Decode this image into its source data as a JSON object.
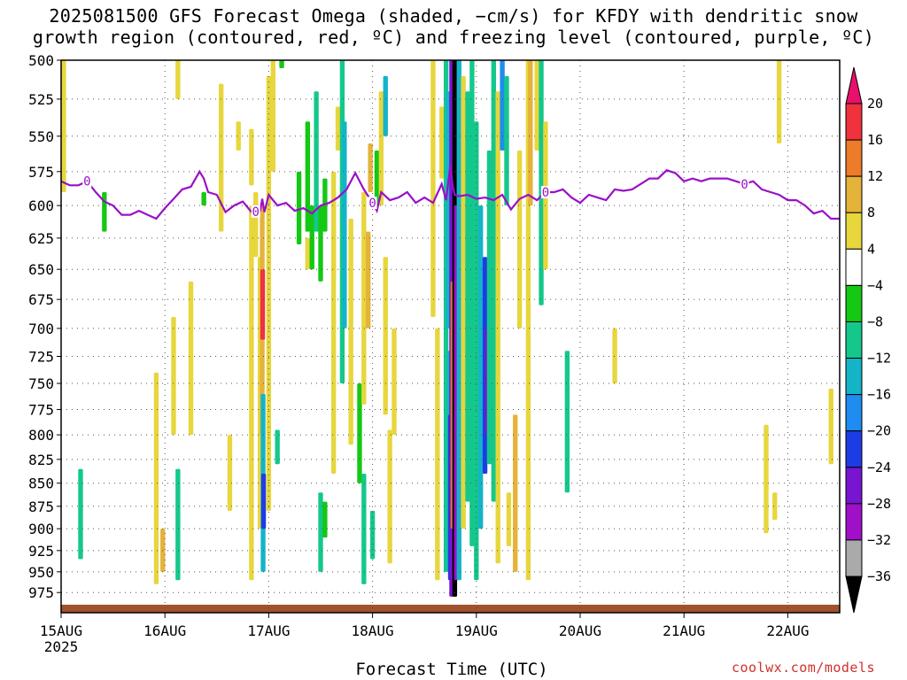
{
  "title_lines": [
    "2025081500 GFS Forecast Omega (shaded, −cm/s) for KFDY with dendritic snow",
    "growth region (contoured, red, ºC) and freezing level (contoured, purple, ºC)"
  ],
  "credit": "coolwx.com/models",
  "chart_data": {
    "type": "heatmap",
    "title": "2025081500 GFS Forecast Omega (shaded, −cm/s) for KFDY with dendritic snow growth region (contoured, red, ºC) and freezing level (contoured, purple, ºC)",
    "xlabel": "Forecast Time (UTC)",
    "ylabel": "",
    "x_ticks": [
      "15AUG",
      "16AUG",
      "17AUG",
      "18AUG",
      "19AUG",
      "20AUG",
      "21AUG",
      "22AUG"
    ],
    "x_tick_sublabel": "2025",
    "xlim_hours": [
      0,
      180
    ],
    "y_ticks": [
      500,
      525,
      550,
      575,
      600,
      625,
      650,
      675,
      700,
      725,
      750,
      775,
      800,
      825,
      850,
      875,
      900,
      925,
      950,
      975
    ],
    "ylim": [
      500,
      1000
    ],
    "y_scale": "log-pressure",
    "grid": true,
    "colorbar": {
      "labels": [
        "20",
        "16",
        "12",
        "8",
        "4",
        "−4",
        "−8",
        "−12",
        "−16",
        "−20",
        "−24",
        "−28",
        "−32",
        "−36"
      ],
      "colors": [
        "#e8106c",
        "#f0323c",
        "#ec7b2a",
        "#e5b23a",
        "#e7d63c",
        "#ffffff",
        "#14c814",
        "#14c88c",
        "#14b4c8",
        "#1e8cf0",
        "#1e3ce6",
        "#7814d2",
        "#a010c8",
        "#aaaaaa",
        "#000000"
      ]
    },
    "omega_cells": [
      {
        "t": 0.6,
        "p0": 500,
        "p1": 590,
        "v": 6
      },
      {
        "t": 4.5,
        "p0": 835,
        "p1": 935,
        "v": -8
      },
      {
        "t": 10,
        "p0": 590,
        "p1": 620,
        "v": -6
      },
      {
        "t": 22,
        "p0": 740,
        "p1": 965,
        "v": 5
      },
      {
        "t": 23.5,
        "p0": 900,
        "p1": 950,
        "v": 10
      },
      {
        "t": 26,
        "p0": 690,
        "p1": 800,
        "v": 5
      },
      {
        "t": 27,
        "p0": 500,
        "p1": 525,
        "v": 5
      },
      {
        "t": 27,
        "p0": 835,
        "p1": 960,
        "v": -8
      },
      {
        "t": 30,
        "p0": 660,
        "p1": 800,
        "v": 5
      },
      {
        "t": 33,
        "p0": 590,
        "p1": 600,
        "v": -6
      },
      {
        "t": 37,
        "p0": 515,
        "p1": 620,
        "v": 5
      },
      {
        "t": 39,
        "p0": 800,
        "p1": 880,
        "v": 5
      },
      {
        "t": 41,
        "p0": 540,
        "p1": 560,
        "v": 5
      },
      {
        "t": 44,
        "p0": 545,
        "p1": 585,
        "v": 5
      },
      {
        "t": 44,
        "p0": 600,
        "p1": 960,
        "v": 5
      },
      {
        "t": 45,
        "p0": 590,
        "p1": 640,
        "v": 5
      },
      {
        "t": 46,
        "p0": 640,
        "p1": 900,
        "v": 5
      },
      {
        "t": 46.5,
        "p0": 600,
        "p1": 800,
        "v": 10
      },
      {
        "t": 46.6,
        "p0": 650,
        "p1": 710,
        "v": 18
      },
      {
        "t": 46.7,
        "p0": 760,
        "p1": 950,
        "v": -14
      },
      {
        "t": 46.8,
        "p0": 840,
        "p1": 900,
        "v": -22
      },
      {
        "t": 48,
        "p0": 510,
        "p1": 600,
        "v": 6
      },
      {
        "t": 48,
        "p0": 600,
        "p1": 880,
        "v": 6
      },
      {
        "t": 49,
        "p0": 500,
        "p1": 575,
        "v": 5
      },
      {
        "t": 50,
        "p0": 795,
        "p1": 830,
        "v": -8
      },
      {
        "t": 51,
        "p0": 500,
        "p1": 505,
        "v": -6
      },
      {
        "t": 55,
        "p0": 575,
        "p1": 630,
        "v": -6
      },
      {
        "t": 57,
        "p0": 540,
        "p1": 620,
        "v": -6
      },
      {
        "t": 57,
        "p0": 625,
        "p1": 650,
        "v": 5
      },
      {
        "t": 58,
        "p0": 600,
        "p1": 650,
        "v": -6
      },
      {
        "t": 59,
        "p0": 520,
        "p1": 620,
        "v": -8
      },
      {
        "t": 60,
        "p0": 600,
        "p1": 660,
        "v": -6
      },
      {
        "t": 60,
        "p0": 860,
        "p1": 950,
        "v": -8
      },
      {
        "t": 61,
        "p0": 580,
        "p1": 620,
        "v": -6
      },
      {
        "t": 61,
        "p0": 870,
        "p1": 910,
        "v": -6
      },
      {
        "t": 63,
        "p0": 575,
        "p1": 660,
        "v": 5
      },
      {
        "t": 63,
        "p0": 590,
        "p1": 840,
        "v": 5
      },
      {
        "t": 64,
        "p0": 530,
        "p1": 560,
        "v": 5
      },
      {
        "t": 65,
        "p0": 500,
        "p1": 750,
        "v": -8
      },
      {
        "t": 65.5,
        "p0": 540,
        "p1": 700,
        "v": -12
      },
      {
        "t": 67,
        "p0": 610,
        "p1": 810,
        "v": 5
      },
      {
        "t": 69,
        "p0": 750,
        "p1": 850,
        "v": -6
      },
      {
        "t": 70,
        "p0": 590,
        "p1": 770,
        "v": 5
      },
      {
        "t": 70,
        "p0": 840,
        "p1": 965,
        "v": -8
      },
      {
        "t": 71,
        "p0": 620,
        "p1": 700,
        "v": 10
      },
      {
        "t": 71.5,
        "p0": 555,
        "p1": 590,
        "v": 8
      },
      {
        "t": 72,
        "p0": 880,
        "p1": 935,
        "v": -8
      },
      {
        "t": 73,
        "p0": 560,
        "p1": 600,
        "v": -6
      },
      {
        "t": 74,
        "p0": 520,
        "p1": 600,
        "v": 5
      },
      {
        "t": 75,
        "p0": 510,
        "p1": 550,
        "v": -12
      },
      {
        "t": 75,
        "p0": 640,
        "p1": 780,
        "v": 6
      },
      {
        "t": 76,
        "p0": 795,
        "p1": 940,
        "v": 5
      },
      {
        "t": 77,
        "p0": 700,
        "p1": 800,
        "v": 5
      },
      {
        "t": 86,
        "p0": 500,
        "p1": 690,
        "v": 5
      },
      {
        "t": 87,
        "p0": 700,
        "p1": 960,
        "v": 5
      },
      {
        "t": 88,
        "p0": 530,
        "p1": 580,
        "v": 5
      },
      {
        "t": 89,
        "p0": 500,
        "p1": 950,
        "v": -8
      },
      {
        "t": 89.5,
        "p0": 520,
        "p1": 700,
        "v": -12
      },
      {
        "t": 89.8,
        "p0": 720,
        "p1": 950,
        "v": -14
      },
      {
        "t": 90,
        "p0": 780,
        "p1": 960,
        "v": -20
      },
      {
        "t": 90.3,
        "p0": 500,
        "p1": 980,
        "v": -26
      },
      {
        "t": 90.6,
        "p0": 660,
        "p1": 900,
        "v": 14
      },
      {
        "t": 91,
        "p0": 500,
        "p1": 980,
        "v": -38
      },
      {
        "t": 91.4,
        "p0": 600,
        "p1": 960,
        "v": -30
      },
      {
        "t": 92,
        "p0": 500,
        "p1": 960,
        "v": -14
      },
      {
        "t": 93,
        "p0": 510,
        "p1": 900,
        "v": 6
      },
      {
        "t": 94,
        "p0": 520,
        "p1": 870,
        "v": -8
      },
      {
        "t": 95,
        "p0": 500,
        "p1": 920,
        "v": -8
      },
      {
        "t": 96,
        "p0": 540,
        "p1": 960,
        "v": -10
      },
      {
        "t": 97,
        "p0": 600,
        "p1": 900,
        "v": -14
      },
      {
        "t": 98,
        "p0": 640,
        "p1": 840,
        "v": -20
      },
      {
        "t": 98.5,
        "p0": 700,
        "p1": 800,
        "v": -24
      },
      {
        "t": 99,
        "p0": 560,
        "p1": 830,
        "v": -10
      },
      {
        "t": 100,
        "p0": 500,
        "p1": 870,
        "v": -8
      },
      {
        "t": 101,
        "p0": 520,
        "p1": 600,
        "v": 5
      },
      {
        "t": 101,
        "p0": 580,
        "p1": 940,
        "v": 5
      },
      {
        "t": 102,
        "p0": 500,
        "p1": 560,
        "v": -16
      },
      {
        "t": 103,
        "p0": 510,
        "p1": 600,
        "v": -8
      },
      {
        "t": 103.5,
        "p0": 860,
        "p1": 920,
        "v": 5
      },
      {
        "t": 105,
        "p0": 780,
        "p1": 950,
        "v": 8
      },
      {
        "t": 106,
        "p0": 560,
        "p1": 700,
        "v": 5
      },
      {
        "t": 108,
        "p0": 500,
        "p1": 960,
        "v": 5
      },
      {
        "t": 108.5,
        "p0": 500,
        "p1": 600,
        "v": 10
      },
      {
        "t": 110,
        "p0": 500,
        "p1": 560,
        "v": 5
      },
      {
        "t": 111,
        "p0": 500,
        "p1": 680,
        "v": -8
      },
      {
        "t": 112,
        "p0": 540,
        "p1": 650,
        "v": 5
      },
      {
        "t": 117,
        "p0": 720,
        "p1": 860,
        "v": -8
      },
      {
        "t": 128,
        "p0": 700,
        "p1": 750,
        "v": 5
      },
      {
        "t": 163,
        "p0": 790,
        "p1": 905,
        "v": 5
      },
      {
        "t": 165,
        "p0": 860,
        "p1": 890,
        "v": 5
      },
      {
        "t": 166,
        "p0": 500,
        "p1": 555,
        "v": 5
      },
      {
        "t": 178,
        "p0": 755,
        "p1": 830,
        "v": 5
      }
    ],
    "freezing_level": {
      "label": "0",
      "t": [
        0,
        2,
        4,
        6,
        8,
        10,
        12,
        14,
        16,
        18,
        20,
        22,
        24,
        26,
        28,
        30,
        32,
        33,
        34,
        36,
        38,
        40,
        42,
        44,
        46,
        46.5,
        47,
        48,
        50,
        52,
        54,
        56,
        58,
        60,
        62,
        64,
        66,
        68,
        70,
        72,
        73,
        74,
        76,
        78,
        80,
        82,
        84,
        86,
        88,
        89,
        90,
        90.5,
        91,
        92,
        94,
        96,
        98,
        100,
        102,
        104,
        106,
        108,
        110,
        112,
        114,
        116,
        118,
        120,
        122,
        124,
        126,
        128,
        130,
        132,
        134,
        136,
        138,
        140,
        142,
        144,
        146,
        148,
        150,
        152,
        154,
        156,
        158,
        160,
        162,
        164,
        166,
        168,
        170,
        172,
        174,
        176,
        178,
        180
      ],
      "p": [
        582,
        585,
        585,
        582,
        590,
        597,
        600,
        607,
        607,
        604,
        607,
        610,
        602,
        595,
        588,
        586,
        575,
        580,
        590,
        592,
        605,
        600,
        597,
        605,
        604,
        595,
        605,
        592,
        600,
        598,
        604,
        602,
        606,
        600,
        598,
        594,
        588,
        576,
        588,
        598,
        604,
        590,
        596,
        594,
        590,
        598,
        594,
        598,
        584,
        596,
        570,
        585,
        592,
        593,
        592,
        595,
        594,
        596,
        592,
        603,
        595,
        592,
        596,
        590,
        590,
        588,
        594,
        598,
        592,
        594,
        596,
        588,
        589,
        588,
        584,
        580,
        580,
        574,
        576,
        582,
        580,
        582,
        580,
        580,
        580,
        582,
        584,
        582,
        588,
        590,
        592,
        596,
        596,
        600,
        606,
        604,
        610,
        610
      ]
    }
  }
}
